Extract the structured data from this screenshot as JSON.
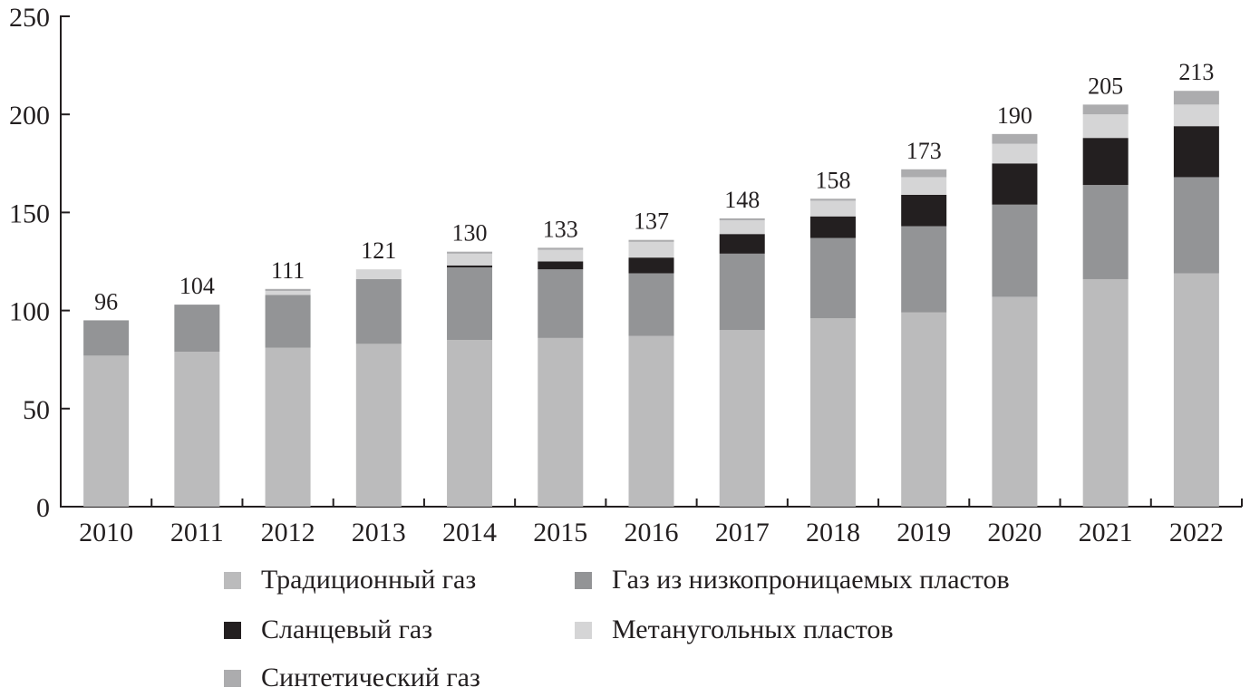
{
  "chart_data": {
    "type": "bar",
    "stacked": true,
    "categories": [
      "2010",
      "2011",
      "2012",
      "2013",
      "2014",
      "2015",
      "2016",
      "2017",
      "2018",
      "2019",
      "2020",
      "2021",
      "2022"
    ],
    "series": [
      {
        "name": "Традиционный газ",
        "color": "#bbbbbc",
        "values": [
          77,
          79,
          81,
          83,
          85,
          86,
          87,
          90,
          96,
          99,
          107,
          116,
          119
        ]
      },
      {
        "name": "Газ из низкопроницаемых пластов",
        "color": "#939496",
        "values": [
          18,
          24,
          27,
          33,
          37,
          35,
          32,
          39,
          41,
          44,
          47,
          48,
          49
        ]
      },
      {
        "name": "Сланцевый газ",
        "color": "#231f20",
        "values": [
          0,
          0,
          0,
          0,
          1,
          4,
          8,
          10,
          11,
          16,
          21,
          24,
          26
        ]
      },
      {
        "name": "Метаугольных пластов",
        "color": "#d5d5d6",
        "values": [
          0,
          0,
          2,
          5,
          6,
          6,
          8,
          7,
          8,
          9,
          10,
          12,
          11
        ]
      },
      {
        "name": "Синтетический газ",
        "color": "#acacae",
        "values": [
          0,
          0,
          1,
          0,
          1,
          1,
          1,
          1,
          1,
          4,
          5,
          5,
          7
        ]
      }
    ],
    "totals": [
      "96",
      "104",
      "111",
      "121",
      "130",
      "133",
      "137",
      "148",
      "158",
      "173",
      "190",
      "205",
      "213"
    ],
    "y_ticks": [
      "0",
      "50",
      "100",
      "150",
      "200",
      "250"
    ],
    "ylim": [
      0,
      250
    ],
    "grid": false,
    "legend_position": "bottom",
    "legend": [
      {
        "label": "Традиционный газ",
        "color": "#bbbbbc"
      },
      {
        "label": "Газ из низкопроницаемых пластов",
        "color": "#939496"
      },
      {
        "label": "Сланцевый газ",
        "color": "#231f20"
      },
      {
        "label": "Метанугольных пластов",
        "color": "#d5d5d6"
      },
      {
        "label": "Синтетический газ",
        "color": "#acacae"
      }
    ]
  }
}
